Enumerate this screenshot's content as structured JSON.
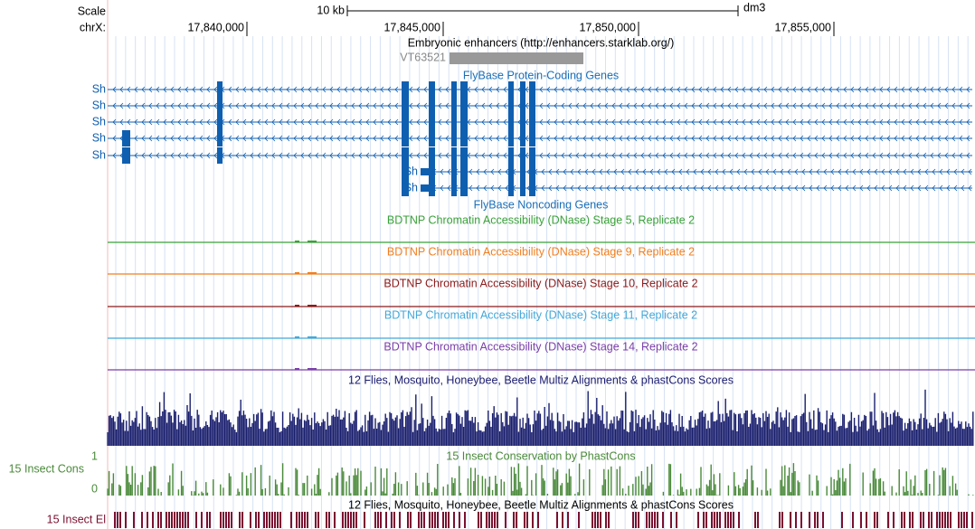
{
  "header": {
    "scale_label": "Scale",
    "chrom_label": "chrX:",
    "scale_bar": "10 kb",
    "assembly": "dm3",
    "ticks": [
      "17,840,000",
      "17,845,000",
      "17,850,000",
      "17,855,000"
    ]
  },
  "enhancers": {
    "title": "Embryonic enhancers (http://enhancers.starklab.org/)",
    "item": "VT63521"
  },
  "protein_coding": {
    "title": "FlyBase Protein-Coding Genes",
    "genes": [
      "Sh",
      "Sh",
      "Sh",
      "Sh",
      "Sh",
      "Sh",
      "Sh"
    ]
  },
  "noncoding": {
    "title": "FlyBase Noncoding Genes"
  },
  "dnase": [
    "BDTNP Chromatin Accessibility (DNase) Stage 5, Replicate 2",
    "BDTNP Chromatin Accessibility (DNase) Stage 9, Replicate 2",
    "BDTNP Chromatin Accessibility (DNase) Stage 10, Replicate 2",
    "BDTNP Chromatin Accessibility (DNase) Stage 11, Replicate 2",
    "BDTNP Chromatin Accessibility (DNase) Stage 14, Replicate 2"
  ],
  "multiz": {
    "title": "12 Flies, Mosquito, Honeybee, Beetle Multiz Alignments & phastCons Scores"
  },
  "phastcons": {
    "title": "15 Insect Conservation by PhastCons",
    "label": "15 Insect Cons",
    "axis_top": "1",
    "axis_bottom": "0"
  },
  "elements": {
    "title": "12 Flies, Mosquito, Honeybee, Beetle Multiz Alignments & phastCons Scores",
    "label": "15 Insect El"
  }
}
